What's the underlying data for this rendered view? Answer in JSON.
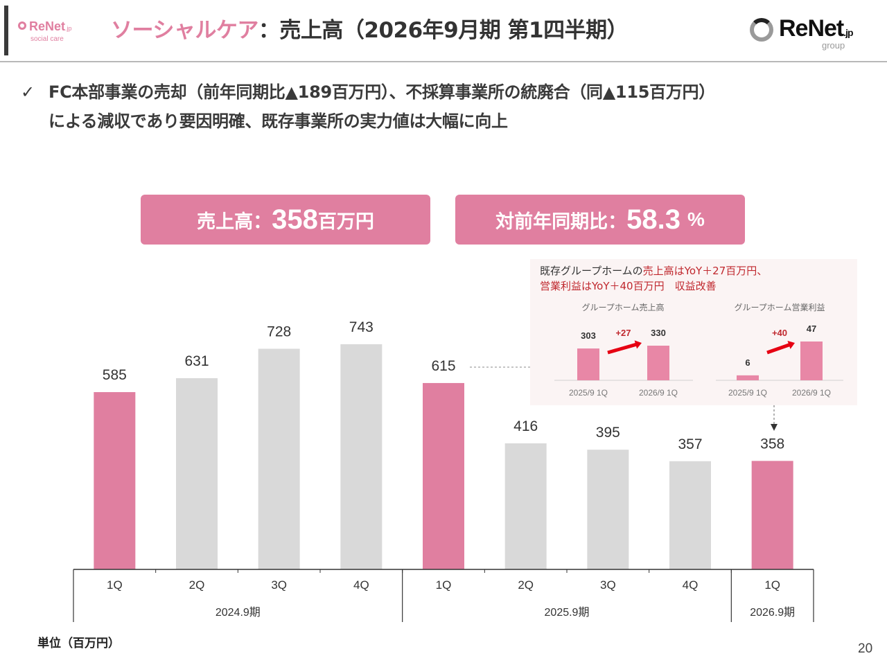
{
  "header": {
    "left_logo": {
      "brand": "ReNet",
      "suffix": ".jp",
      "sub": "social care"
    },
    "title_highlight": "ソーシャルケア",
    "title_rest": "：売上高（2026年9月期 第1四半期）",
    "right_logo": {
      "brand": "ReNet",
      "suffix": ".jp",
      "sub": "group"
    }
  },
  "bullet": {
    "check_icon": "✓",
    "line1": "FC本部事業の売却（前年同期比▲189百万円）、不採算事業所の統廃合（同▲115百万円）",
    "line2": "による減収であり要因明確、既存事業所の実力値は大幅に向上"
  },
  "kpis": [
    {
      "label": "売上高：",
      "value": "358",
      "unit": "百万円"
    },
    {
      "label": "対前年同期比：",
      "value": "58.3",
      "unit": "%"
    }
  ],
  "inset": {
    "note_line1_plain": "既存グループホームの",
    "note_line1_red": "売上高はYoY＋27百万円、",
    "note_line2_red": "営業利益はYoY＋40百万円",
    "note_line2_plain": "　収益改善"
  },
  "footer": {
    "unit_label": "単位（百万円）",
    "page_number": "20"
  },
  "colors": {
    "highlight_bar": "#e07fa0",
    "normal_bar": "#d9d9d9",
    "inset_bar": "#e887a6",
    "delta_red": "#e60012",
    "inset_bg": "#fbf4f4"
  },
  "chart_data": [
    {
      "type": "bar",
      "title": "",
      "xlabel": "",
      "ylabel": "",
      "unit": "百万円",
      "ylim": [
        0,
        800
      ],
      "grid": false,
      "categories": [
        "1Q",
        "2Q",
        "3Q",
        "4Q",
        "1Q",
        "2Q",
        "3Q",
        "4Q",
        "1Q"
      ],
      "groups": [
        {
          "label": "2024.9期",
          "count": 4
        },
        {
          "label": "2025.9期",
          "count": 4
        },
        {
          "label": "2026.9期",
          "count": 1
        }
      ],
      "values": [
        585,
        631,
        728,
        743,
        615,
        416,
        395,
        357,
        358
      ],
      "highlighted": [
        true,
        false,
        false,
        false,
        true,
        false,
        false,
        false,
        true
      ]
    },
    {
      "type": "bar",
      "title": "グループホーム売上高",
      "categories": [
        "2025/9 1Q",
        "2026/9 1Q"
      ],
      "values": [
        303,
        330
      ],
      "delta_label": "+27"
    },
    {
      "type": "bar",
      "title": "グループホーム営業利益",
      "categories": [
        "2025/9 1Q",
        "2026/9 1Q"
      ],
      "values": [
        6,
        47
      ],
      "delta_label": "+40"
    }
  ]
}
